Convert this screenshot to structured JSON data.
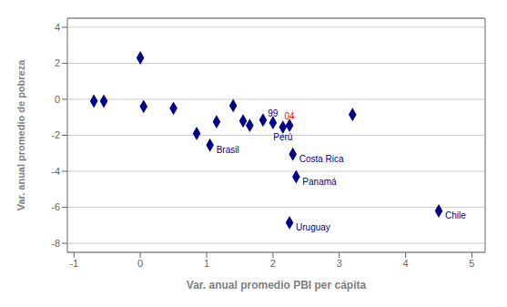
{
  "chart_data": {
    "type": "scatter",
    "x_label": "Var. anual promedio PBI per cápita",
    "y_label": "Var. anual promedio de pobreza",
    "x": [
      -0.7,
      -0.55,
      0.0,
      0.05,
      0.5,
      0.85,
      1.05,
      1.15,
      1.4,
      1.55,
      1.65,
      1.85,
      2.0,
      2.25,
      2.15,
      2.3,
      2.35,
      2.25,
      3.2,
      4.5
    ],
    "values": [
      -0.1,
      -0.1,
      2.3,
      -0.4,
      -0.5,
      -1.9,
      -2.55,
      -1.25,
      -0.35,
      -1.2,
      -1.45,
      -1.15,
      -1.3,
      -1.45,
      -1.55,
      -3.05,
      -4.3,
      -6.85,
      -0.85,
      -6.2
    ],
    "color": "#00008B",
    "marker": "diamond",
    "annotations": [
      {
        "text": "Brasil",
        "x": 1.05,
        "y": -2.55,
        "color": "#00008B",
        "position": "right"
      },
      {
        "text": "99",
        "x": 2.0,
        "y": -1.3,
        "color": "#00008B",
        "position": "above"
      },
      {
        "text": "04",
        "x": 2.25,
        "y": -1.45,
        "color": "#ff0000",
        "position": "above"
      },
      {
        "text": "Perú",
        "x": 2.15,
        "y": -1.55,
        "color": "#00008B",
        "position": "below"
      },
      {
        "text": "Costa Rica",
        "x": 2.3,
        "y": -3.05,
        "color": "#00008B",
        "position": "right"
      },
      {
        "text": "Panamá",
        "x": 2.35,
        "y": -4.3,
        "color": "#00008B",
        "position": "right"
      },
      {
        "text": "Uruguay",
        "x": 2.25,
        "y": -6.85,
        "color": "#00008B",
        "position": "right"
      },
      {
        "text": "Chile",
        "x": 4.5,
        "y": -6.2,
        "color": "#00008B",
        "position": "right"
      }
    ],
    "xlim": [
      -1.1,
      5.2
    ],
    "ylim": [
      -8.5,
      4.5
    ],
    "xticks": [
      -1,
      0,
      1,
      2,
      3,
      4,
      5
    ],
    "yticks": [
      -8,
      -6,
      -4,
      -2,
      0,
      2,
      4
    ],
    "grid": true
  }
}
